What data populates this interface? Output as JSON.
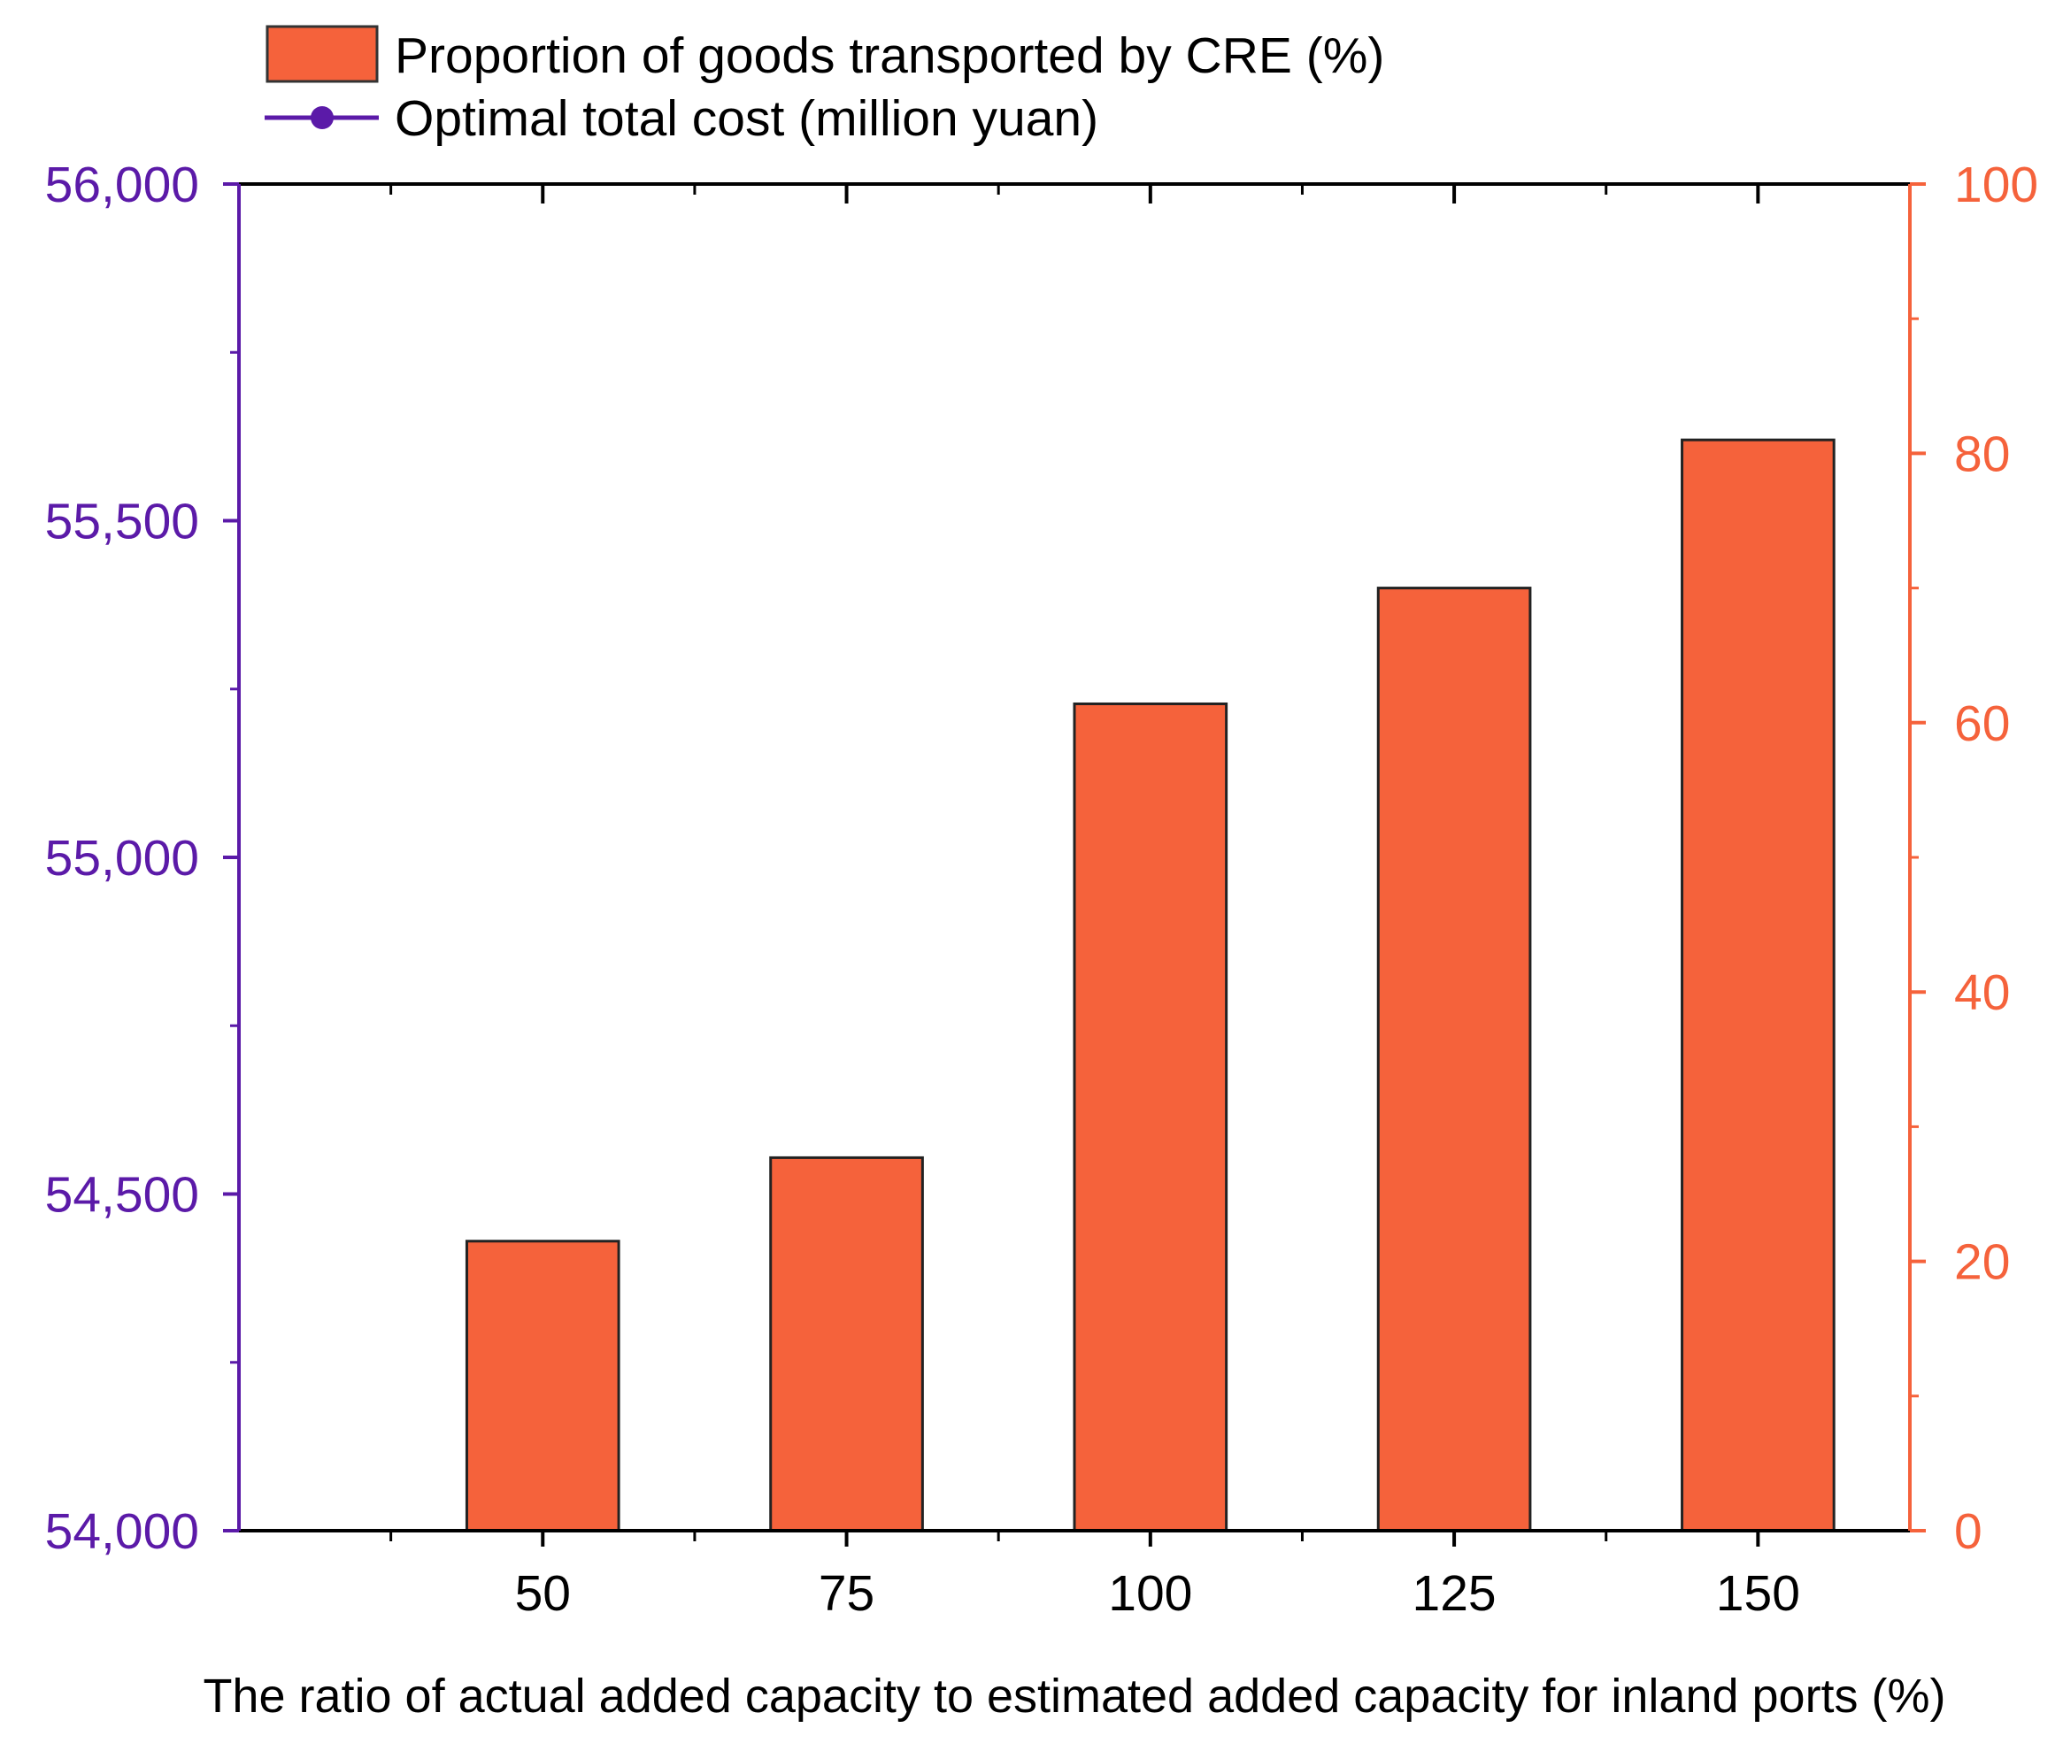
{
  "chart_data": {
    "type": "bar",
    "title": "",
    "xlabel": "The ratio of actual added capacity to estimated added capacity for inland ports (%)",
    "categories": [
      "50",
      "75",
      "100",
      "125",
      "150"
    ],
    "series": [
      {
        "name": "Proportion of goods transported by CRE (%)",
        "type": "bar",
        "axis": "right",
        "color": "#f5623b",
        "values": [
          21.5,
          27.7,
          61.4,
          70.0,
          81.0
        ]
      }
    ],
    "line_legend": {
      "name": "Optimal total cost (million yuan)",
      "type": "line",
      "axis": "left",
      "color": "#5b1aa8"
    },
    "y_left": {
      "ylim": [
        54000,
        56000
      ],
      "ticks": [
        "54,000",
        "54,500",
        "55,000",
        "55,500",
        "56,000"
      ],
      "color": "#5b1aa8"
    },
    "y_right": {
      "ylim": [
        0,
        100
      ],
      "ticks": [
        "0",
        "20",
        "40",
        "60",
        "80",
        "100"
      ],
      "color": "#f5623b"
    },
    "legend_position": "top-left",
    "grid": false
  }
}
